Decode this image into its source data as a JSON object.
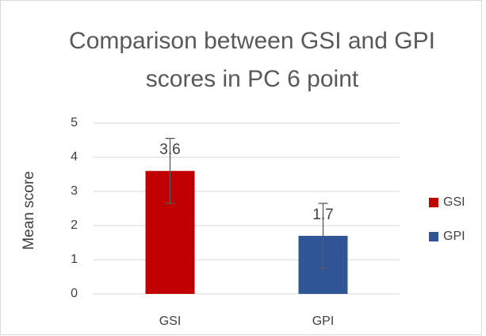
{
  "chart_data": {
    "type": "bar",
    "title": "Comparison between GSI and GPI scores in PC 6 point",
    "categories": [
      "GSI",
      "GPI"
    ],
    "values": [
      3.6,
      1.7
    ],
    "errors": [
      0.95,
      0.95
    ],
    "colors": [
      "#c00000",
      "#2f5597"
    ],
    "y_label": "Mean score",
    "ylim": [
      0,
      5
    ],
    "yticks": [
      0,
      1,
      2,
      3,
      4,
      5
    ],
    "grid": true,
    "legend": "right"
  }
}
